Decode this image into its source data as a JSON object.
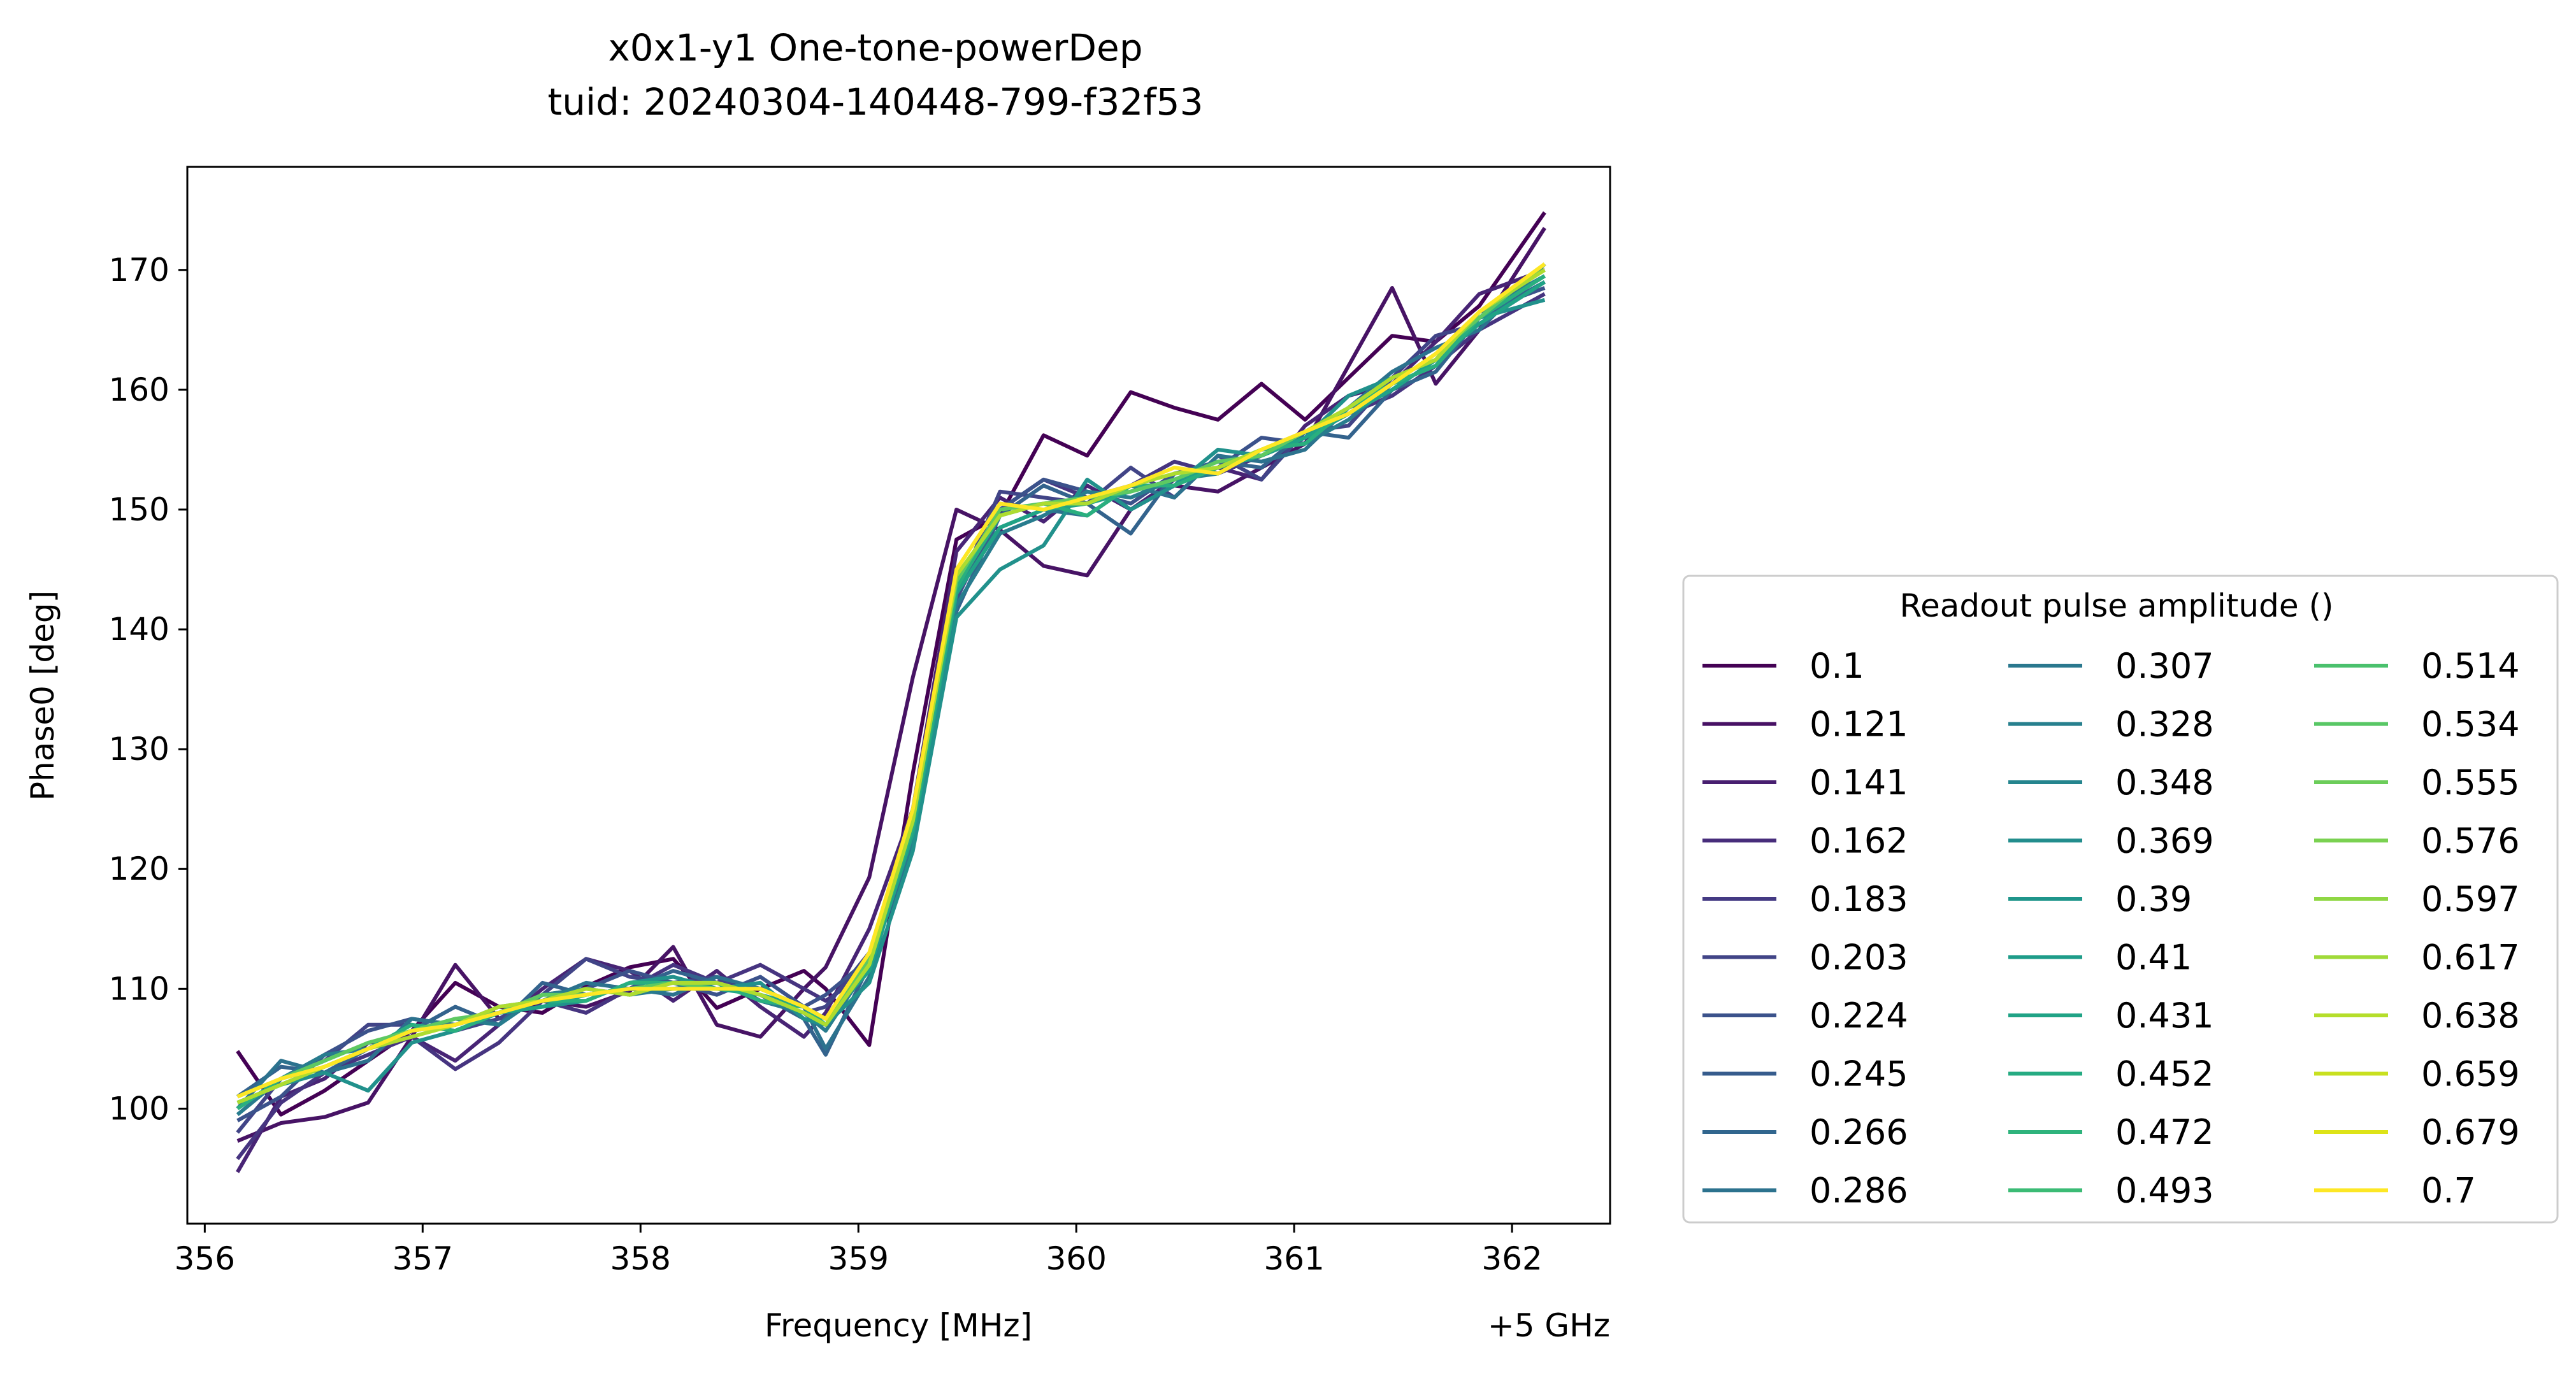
{
  "chart_data": {
    "type": "line",
    "title_line1": "x0x1-y1 One-tone-powerDep",
    "title_line2": "tuid: 20240304-140448-799-f32f53",
    "xlabel": "Frequency [MHz]",
    "x_offset_label": "+5 GHz",
    "ylabel": "Phase0 [deg]",
    "xlim": [
      355.92,
      362.45
    ],
    "ylim": [
      90.4,
      178.6
    ],
    "xticks": [
      356,
      357,
      358,
      359,
      360,
      361,
      362
    ],
    "yticks": [
      100,
      110,
      120,
      130,
      140,
      150,
      160,
      170
    ],
    "legend_title": "Readout pulse amplitude ()",
    "legend_position": "lower-right outside",
    "legend_columns": 3,
    "x": [
      356.15,
      356.35,
      356.55,
      356.75,
      356.95,
      357.15,
      357.35,
      357.55,
      357.75,
      357.95,
      358.15,
      358.35,
      358.55,
      358.75,
      358.85,
      359.05,
      359.25,
      359.45,
      359.65,
      359.85,
      360.05,
      360.25,
      360.45,
      360.65,
      360.85,
      361.05,
      361.25,
      361.45,
      361.65,
      361.85,
      362.15
    ],
    "series": [
      {
        "name": "0.1",
        "color": "#440154",
        "values": [
          104.8,
          99.5,
          101.5,
          104.0,
          106.5,
          110.5,
          108.5,
          108.0,
          110.2,
          111.8,
          112.5,
          108.4,
          110.0,
          111.5,
          110.0,
          105.3,
          128.0,
          147.5,
          149.5,
          156.2,
          154.5,
          159.8,
          158.5,
          157.5,
          160.5,
          157.5,
          161.0,
          164.5,
          164.0,
          167.0,
          174.8
        ]
      },
      {
        "name": "0.121",
        "color": "#471365",
        "values": [
          97.3,
          98.8,
          99.3,
          100.5,
          106.0,
          112.0,
          107.5,
          109.0,
          108.5,
          109.8,
          113.5,
          107.0,
          106.0,
          110.0,
          111.8,
          119.3,
          136.0,
          150.0,
          148.3,
          145.3,
          144.5,
          150.0,
          152.0,
          151.5,
          153.5,
          155.5,
          162.0,
          168.5,
          160.5,
          165.0,
          173.5
        ]
      },
      {
        "name": "0.141",
        "color": "#482475",
        "values": [
          94.7,
          101.0,
          102.5,
          105.5,
          106.0,
          104.0,
          107.0,
          110.0,
          112.5,
          111.5,
          109.0,
          111.5,
          108.5,
          106.0,
          108.0,
          115.0,
          125.0,
          146.5,
          151.0,
          149.0,
          152.0,
          150.0,
          152.5,
          153.5,
          152.5,
          157.0,
          159.5,
          160.5,
          164.0,
          168.0,
          170.0
        ]
      },
      {
        "name": "0.162",
        "color": "#463480",
        "values": [
          95.8,
          100.5,
          103.0,
          104.5,
          106.0,
          103.3,
          105.5,
          109.0,
          108.0,
          110.0,
          112.0,
          110.5,
          112.0,
          110.0,
          109.0,
          111.5,
          124.0,
          144.0,
          150.0,
          152.5,
          151.0,
          152.0,
          154.0,
          153.0,
          154.5,
          156.0,
          158.0,
          159.5,
          162.0,
          165.0,
          168.0
        ]
      },
      {
        "name": "0.183",
        "color": "#414487",
        "values": [
          98.0,
          102.5,
          104.0,
          107.0,
          107.0,
          106.5,
          107.5,
          109.5,
          112.5,
          111.0,
          110.5,
          111.0,
          109.0,
          108.0,
          108.5,
          113.0,
          122.0,
          143.0,
          151.5,
          151.0,
          150.5,
          153.5,
          151.0,
          154.5,
          152.5,
          156.5,
          157.0,
          161.0,
          164.5,
          165.5,
          169.0
        ]
      },
      {
        "name": "0.203",
        "color": "#3b528b",
        "values": [
          99.0,
          101.0,
          104.5,
          106.5,
          107.5,
          107.0,
          108.0,
          109.5,
          110.0,
          111.5,
          110.5,
          109.5,
          111.0,
          108.5,
          109.5,
          112.5,
          123.5,
          142.5,
          150.0,
          152.5,
          151.5,
          150.5,
          153.0,
          153.5,
          156.0,
          155.5,
          158.5,
          160.0,
          162.5,
          166.5,
          168.5
        ]
      },
      {
        "name": "0.224",
        "color": "#33638d",
        "values": [
          101.0,
          103.5,
          103.0,
          105.0,
          106.5,
          108.5,
          107.0,
          110.5,
          109.5,
          110.0,
          111.5,
          110.5,
          109.5,
          107.5,
          104.5,
          112.0,
          122.0,
          141.5,
          149.5,
          152.0,
          150.5,
          148.0,
          153.0,
          154.0,
          153.5,
          156.5,
          156.0,
          160.0,
          161.5,
          166.0,
          169.0
        ]
      },
      {
        "name": "0.245",
        "color": "#2c728e",
        "values": [
          100.0,
          104.0,
          103.0,
          104.0,
          107.5,
          107.0,
          108.5,
          109.0,
          110.5,
          110.0,
          109.5,
          111.0,
          110.0,
          108.5,
          105.0,
          111.0,
          124.0,
          143.0,
          148.5,
          150.0,
          149.5,
          152.0,
          151.0,
          154.5,
          154.0,
          155.0,
          158.5,
          161.5,
          163.5,
          165.0,
          170.5
        ]
      },
      {
        "name": "0.266",
        "color": "#287c8e",
        "values": [
          99.5,
          102.5,
          104.5,
          105.0,
          106.5,
          107.5,
          107.0,
          109.5,
          110.0,
          109.5,
          110.0,
          110.5,
          109.0,
          108.0,
          106.5,
          112.0,
          122.5,
          142.0,
          148.0,
          149.5,
          151.5,
          151.0,
          152.5,
          153.0,
          155.0,
          155.5,
          157.5,
          160.5,
          162.0,
          166.5,
          169.5
        ]
      },
      {
        "name": "0.286",
        "color": "#21918c",
        "values": [
          100.5,
          102.0,
          103.0,
          101.5,
          105.5,
          106.5,
          108.0,
          108.5,
          109.0,
          110.5,
          111.0,
          110.0,
          110.5,
          107.5,
          107.0,
          110.5,
          121.5,
          141.0,
          145.0,
          147.0,
          152.5,
          150.0,
          152.0,
          155.0,
          154.5,
          156.0,
          159.5,
          161.0,
          162.5,
          166.0,
          167.5
        ]
      },
      {
        "name": "0.39",
        "color": "#20a386",
        "values": [
          100.5,
          102.0,
          103.5,
          105.0,
          106.5,
          107.0,
          108.0,
          108.5,
          109.5,
          110.0,
          110.0,
          110.0,
          109.5,
          108.5,
          107.5,
          111.5,
          123.0,
          143.0,
          148.5,
          150.0,
          150.5,
          151.5,
          152.5,
          153.5,
          154.5,
          156.0,
          158.0,
          160.0,
          162.5,
          165.5,
          169.0
        ]
      },
      {
        "name": "0.472",
        "color": "#29af7f",
        "values": [
          100.0,
          102.5,
          103.5,
          105.0,
          107.0,
          106.5,
          108.0,
          109.0,
          109.0,
          110.5,
          110.5,
          110.5,
          109.0,
          108.5,
          107.0,
          112.0,
          123.5,
          143.5,
          149.5,
          150.5,
          149.5,
          152.0,
          152.0,
          153.5,
          155.0,
          155.5,
          158.5,
          160.5,
          162.0,
          166.0,
          169.5
        ]
      },
      {
        "name": "0.555",
        "color": "#5ec962",
        "values": [
          101.0,
          102.5,
          104.0,
          105.5,
          106.5,
          107.5,
          108.0,
          109.5,
          109.5,
          110.0,
          110.5,
          110.0,
          110.0,
          108.5,
          107.5,
          112.5,
          124.5,
          144.0,
          150.0,
          150.5,
          151.0,
          151.5,
          152.5,
          154.0,
          154.5,
          156.5,
          158.0,
          160.5,
          163.0,
          166.0,
          170.5
        ]
      },
      {
        "name": "0.638",
        "color": "#addc30",
        "values": [
          100.5,
          102.0,
          103.5,
          105.0,
          106.0,
          107.0,
          108.5,
          109.0,
          110.0,
          109.5,
          110.5,
          110.5,
          109.5,
          108.0,
          107.0,
          112.0,
          124.0,
          144.5,
          149.5,
          150.5,
          150.5,
          152.0,
          153.0,
          153.5,
          155.0,
          156.5,
          158.5,
          161.0,
          162.5,
          166.5,
          170.0
        ]
      },
      {
        "name": "0.7",
        "color": "#fde725",
        "values": [
          101.0,
          102.5,
          103.5,
          105.0,
          106.5,
          107.0,
          108.0,
          109.0,
          109.5,
          110.0,
          110.0,
          110.0,
          110.0,
          108.5,
          107.5,
          113.0,
          125.0,
          145.0,
          150.5,
          150.0,
          151.0,
          152.0,
          153.5,
          153.0,
          155.0,
          156.5,
          158.0,
          160.5,
          163.0,
          166.5,
          170.5
        ]
      }
    ],
    "legend_entries": [
      {
        "label": "0.1",
        "color": "#440154"
      },
      {
        "label": "0.121",
        "color": "#471164"
      },
      {
        "label": "0.141",
        "color": "#481f70"
      },
      {
        "label": "0.162",
        "color": "#472d7b"
      },
      {
        "label": "0.183",
        "color": "#443a83"
      },
      {
        "label": "0.203",
        "color": "#414487"
      },
      {
        "label": "0.224",
        "color": "#3b528b"
      },
      {
        "label": "0.245",
        "color": "#365c8d"
      },
      {
        "label": "0.266",
        "color": "#31668e"
      },
      {
        "label": "0.286",
        "color": "#2c728e"
      },
      {
        "label": "0.307",
        "color": "#2a788e"
      },
      {
        "label": "0.328",
        "color": "#27808e"
      },
      {
        "label": "0.348",
        "color": "#25858e"
      },
      {
        "label": "0.369",
        "color": "#228d8d"
      },
      {
        "label": "0.39",
        "color": "#1f958b"
      },
      {
        "label": "0.41",
        "color": "#1e9c89"
      },
      {
        "label": "0.431",
        "color": "#20a386"
      },
      {
        "label": "0.452",
        "color": "#25ab82"
      },
      {
        "label": "0.472",
        "color": "#2eb37c"
      },
      {
        "label": "0.493",
        "color": "#3bbb75"
      },
      {
        "label": "0.514",
        "color": "#4ac16d"
      },
      {
        "label": "0.534",
        "color": "#58c765"
      },
      {
        "label": "0.555",
        "color": "#6ccd5a"
      },
      {
        "label": "0.576",
        "color": "#7ad151"
      },
      {
        "label": "0.597",
        "color": "#8fd744"
      },
      {
        "label": "0.617",
        "color": "#a0da39"
      },
      {
        "label": "0.638",
        "color": "#b5de2b"
      },
      {
        "label": "0.659",
        "color": "#c8e020"
      },
      {
        "label": "0.679",
        "color": "#dde318"
      },
      {
        "label": "0.7",
        "color": "#fde725"
      }
    ]
  }
}
